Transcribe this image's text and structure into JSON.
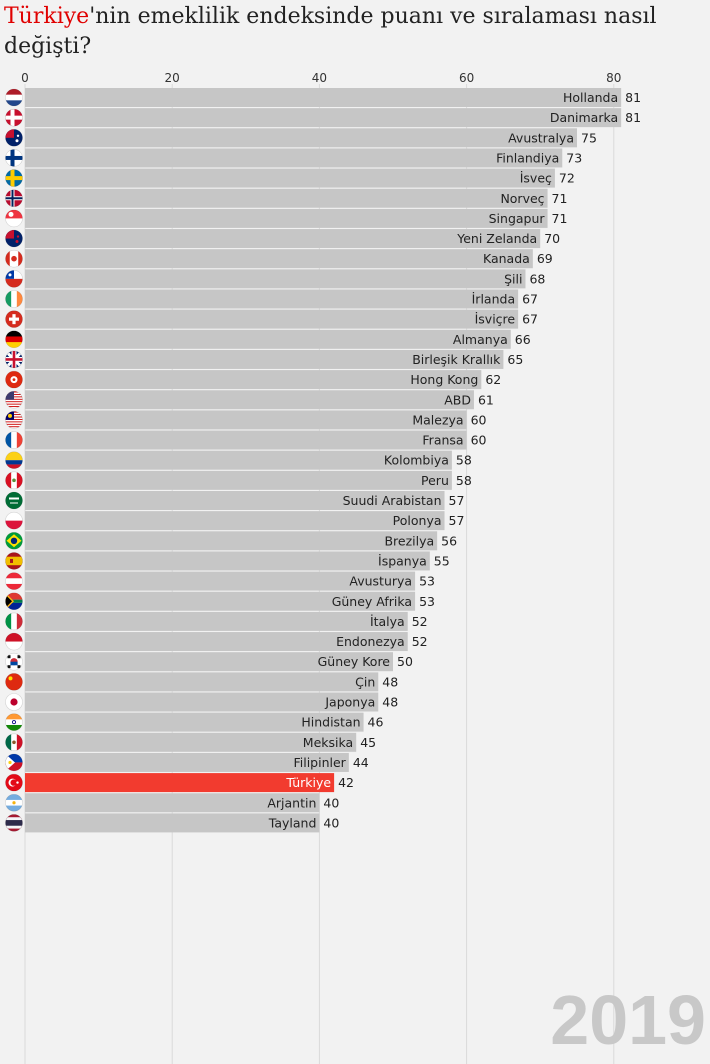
{
  "title": {
    "highlight": "Türkiye",
    "rest": "'nin emeklilik endeksinde puanı ve sıralaması nasıl değişti?"
  },
  "year_label": "2019",
  "colors": {
    "bar": "#c6c6c6",
    "highlight_bar": "#f23b2f",
    "grid": "#dadada",
    "label": "#222222",
    "highlight_label": "#ffffff",
    "year": "#c8c8c8"
  },
  "chart_data": {
    "type": "bar",
    "orientation": "horizontal",
    "xlim": [
      0,
      81
    ],
    "xticks": [
      0,
      20,
      40,
      60,
      80
    ],
    "highlight": "Türkiye",
    "categories": [
      "Hollanda",
      "Danimarka",
      "Avustralya",
      "Finlandiya",
      "İsveç",
      "Norveç",
      "Singapur",
      "Yeni Zelanda",
      "Kanada",
      "Şili",
      "İrlanda",
      "İsviçre",
      "Almanya",
      "Birleşik Krallık",
      "Hong Kong",
      "ABD",
      "Malezya",
      "Fransa",
      "Kolombiya",
      "Peru",
      "Suudi Arabistan",
      "Polonya",
      "Brezilya",
      "İspanya",
      "Avusturya",
      "Güney Afrika",
      "İtalya",
      "Endonezya",
      "Güney Kore",
      "Çin",
      "Japonya",
      "Hindistan",
      "Meksika",
      "Filipinler",
      "Türkiye",
      "Arjantin",
      "Tayland"
    ],
    "values": [
      81,
      81,
      75,
      73,
      72,
      71,
      71,
      70,
      69,
      68,
      67,
      67,
      66,
      65,
      62,
      61,
      60,
      60,
      58,
      58,
      57,
      57,
      56,
      55,
      53,
      53,
      52,
      52,
      50,
      48,
      48,
      46,
      45,
      44,
      42,
      40,
      40
    ],
    "flag_icons": [
      "flag-netherlands-icon",
      "flag-denmark-icon",
      "flag-australia-icon",
      "flag-finland-icon",
      "flag-sweden-icon",
      "flag-norway-icon",
      "flag-singapore-icon",
      "flag-new-zealand-icon",
      "flag-canada-icon",
      "flag-chile-icon",
      "flag-ireland-icon",
      "flag-switzerland-icon",
      "flag-germany-icon",
      "flag-uk-icon",
      "flag-hong-kong-icon",
      "flag-usa-icon",
      "flag-malaysia-icon",
      "flag-france-icon",
      "flag-colombia-icon",
      "flag-peru-icon",
      "flag-saudi-arabia-icon",
      "flag-poland-icon",
      "flag-brazil-icon",
      "flag-spain-icon",
      "flag-austria-icon",
      "flag-south-africa-icon",
      "flag-italy-icon",
      "flag-indonesia-icon",
      "flag-south-korea-icon",
      "flag-china-icon",
      "flag-japan-icon",
      "flag-india-icon",
      "flag-mexico-icon",
      "flag-philippines-icon",
      "flag-turkey-icon",
      "flag-argentina-icon",
      "flag-thailand-icon"
    ]
  }
}
